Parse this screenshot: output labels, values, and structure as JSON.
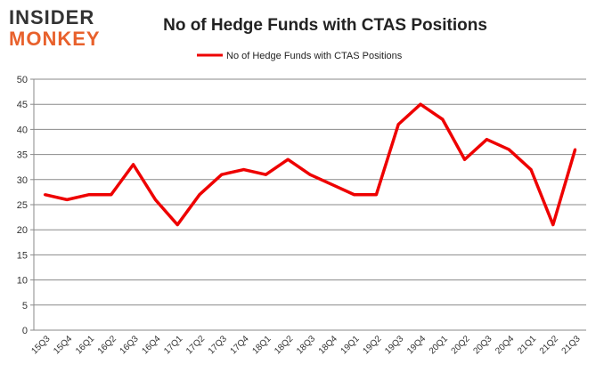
{
  "logo": {
    "line1": "INSIDER",
    "line2": "MONKEY"
  },
  "chart_data": {
    "type": "line",
    "title": "No of Hedge Funds with CTAS Positions",
    "xlabel": "",
    "ylabel": "",
    "ylim": [
      0,
      50
    ],
    "yticks": [
      0,
      5,
      10,
      15,
      20,
      25,
      30,
      35,
      40,
      45,
      50
    ],
    "grid": true,
    "legend": "top",
    "categories": [
      "15Q3",
      "15Q4",
      "16Q1",
      "16Q2",
      "16Q3",
      "16Q4",
      "17Q1",
      "17Q2",
      "17Q3",
      "17Q4",
      "18Q1",
      "18Q2",
      "18Q3",
      "18Q4",
      "19Q1",
      "19Q2",
      "19Q3",
      "19Q4",
      "20Q1",
      "20Q2",
      "20Q3",
      "20Q4",
      "21Q1",
      "21Q2",
      "21Q3"
    ],
    "series": [
      {
        "name": "No of Hedge Funds with CTAS Positions",
        "color": "#ee0000",
        "values": [
          27,
          26,
          27,
          27,
          33,
          26,
          21,
          27,
          31,
          32,
          31,
          34,
          31,
          29,
          27,
          27,
          41,
          45,
          42,
          34,
          38,
          36,
          32,
          21,
          36
        ]
      }
    ]
  }
}
